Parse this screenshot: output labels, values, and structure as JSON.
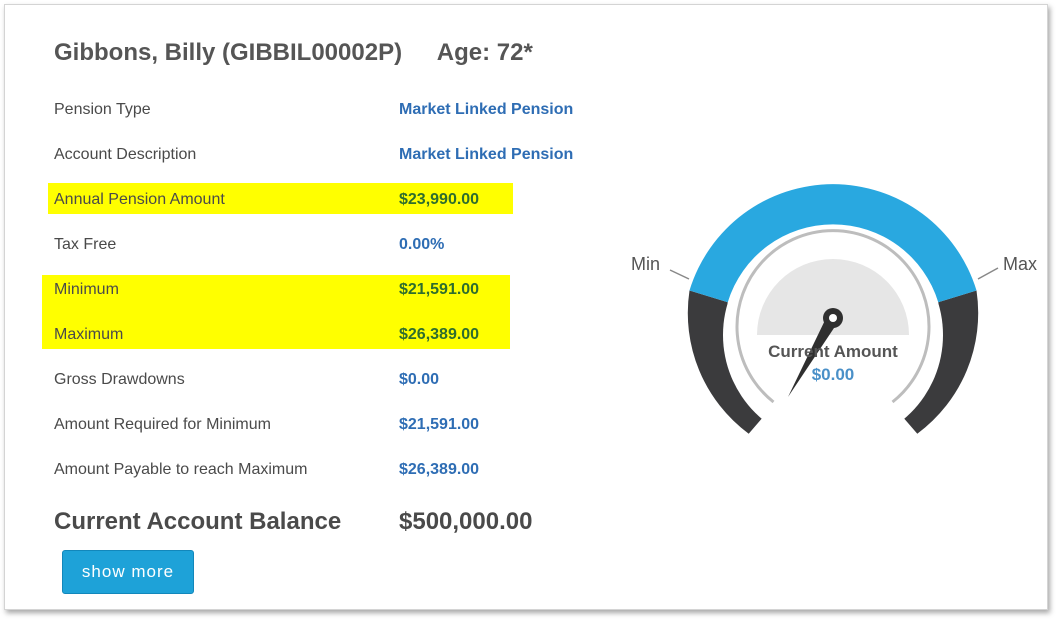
{
  "header": {
    "name": "Gibbons, Billy (GIBBIL00002P)",
    "age": "Age: 72*"
  },
  "rows": [
    {
      "label": "Pension Type",
      "value": "Market Linked Pension",
      "highlight": false
    },
    {
      "label": "Account Description",
      "value": "Market Linked Pension",
      "highlight": false
    },
    {
      "label": "Annual Pension Amount",
      "value": "$23,990.00",
      "highlight": true
    },
    {
      "label": "Tax Free",
      "value": "0.00%",
      "highlight": false
    },
    {
      "label": "Minimum",
      "value": "$21,591.00",
      "highlight": true
    },
    {
      "label": "Maximum",
      "value": "$26,389.00",
      "highlight": true
    },
    {
      "label": "Gross Drawdowns",
      "value": "$0.00",
      "highlight": false
    },
    {
      "label": "Amount Required for Minimum",
      "value": "$21,591.00",
      "highlight": false
    },
    {
      "label": "Amount Payable to reach Maximum",
      "value": "$26,389.00",
      "highlight": false
    }
  ],
  "balance": {
    "label": "Current Account Balance",
    "value": "$500,000.00"
  },
  "button": {
    "label": "show more"
  },
  "gauge": {
    "min_label": "Min",
    "max_label": "Max",
    "center_label": "Current Amount",
    "center_value": "$0.00",
    "needle_fraction": 0.0
  },
  "colors": {
    "accent": "#29a8e0",
    "dark_band": "#3b3b3d",
    "value_blue": "#2e6db4",
    "highlight": "#ffff00",
    "button": "#1ea2d8"
  }
}
